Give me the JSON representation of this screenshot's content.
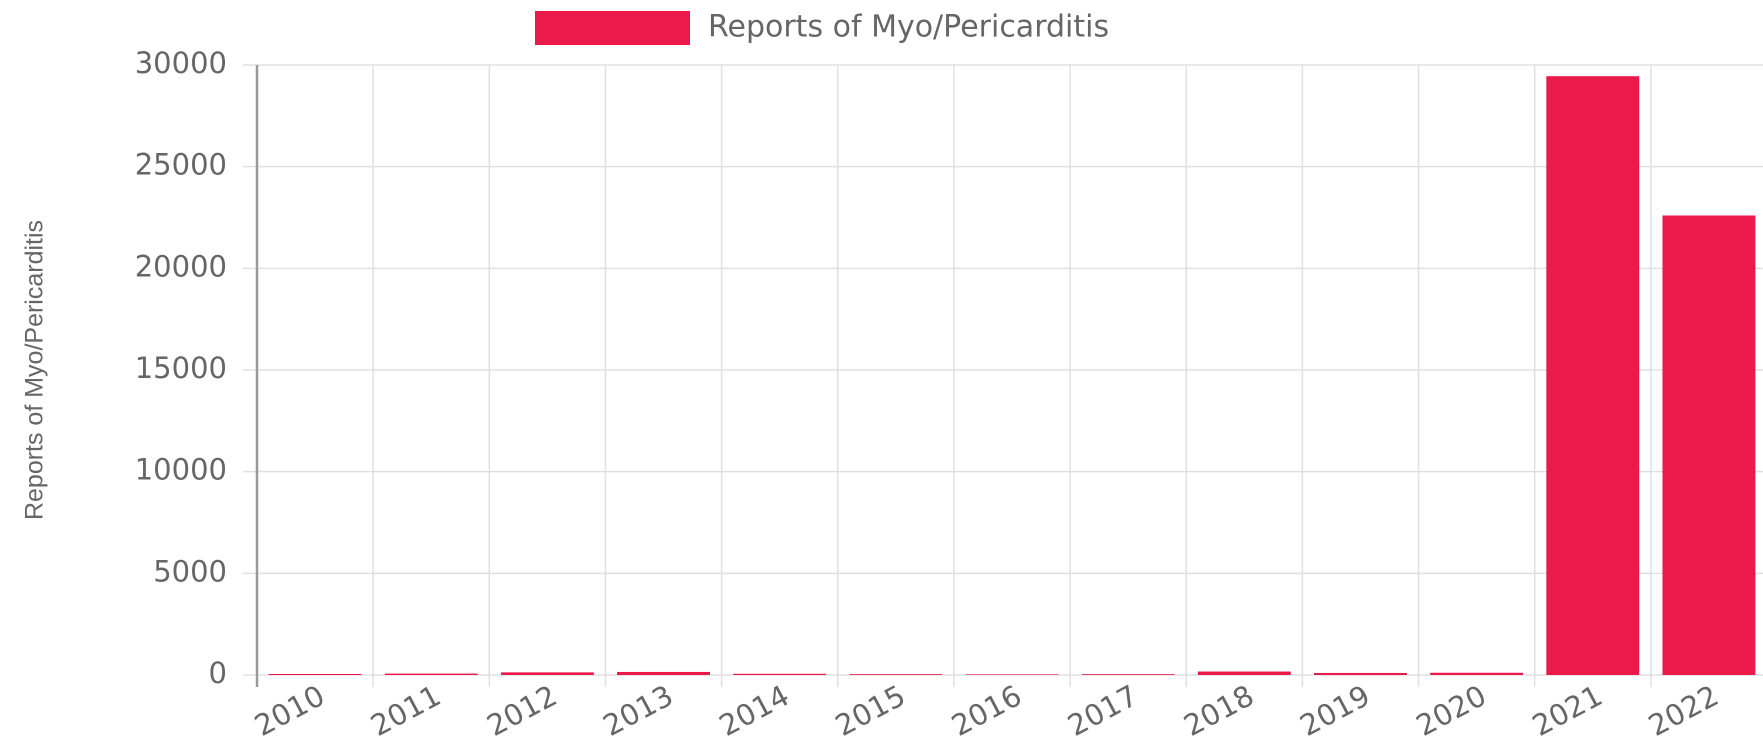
{
  "chart_data": {
    "type": "bar",
    "legend": "top",
    "y_label": "Reports of Myo/Pericarditis",
    "series": [
      {
        "name": "Reports of Myo/Pericarditis",
        "color": "#ec1a4a",
        "values": [
          50,
          70,
          130,
          150,
          60,
          40,
          30,
          40,
          170,
          100,
          110,
          29450,
          22600
        ]
      }
    ],
    "categories": [
      "2010",
      "2011",
      "2012",
      "2013",
      "2014",
      "2015",
      "2016",
      "2017",
      "2018",
      "2019",
      "2020",
      "2021",
      "2022"
    ],
    "ylim": [
      0,
      30000
    ],
    "yticks": [
      0,
      5000,
      10000,
      15000,
      20000,
      25000,
      30000
    ],
    "grid": true
  }
}
